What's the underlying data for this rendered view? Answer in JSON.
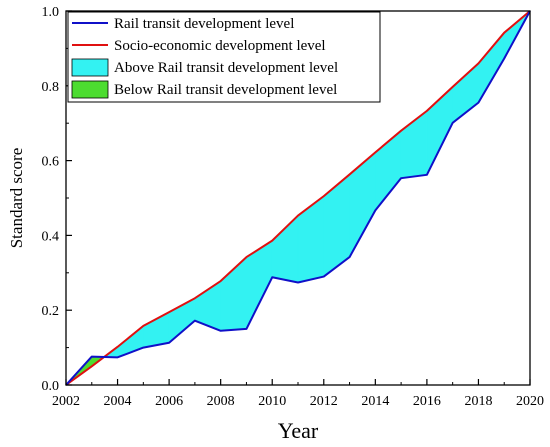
{
  "chart_data": {
    "type": "area",
    "title": "",
    "xlabel": "Year",
    "ylabel": "Standard score",
    "xlim": [
      2002,
      2020
    ],
    "ylim": [
      0,
      1.0
    ],
    "x_ticks": [
      "2002",
      "2004",
      "2006",
      "2008",
      "2010",
      "2012",
      "2014",
      "2016",
      "2018",
      "2020"
    ],
    "y_ticks": [
      "0.0",
      "0.2",
      "0.4",
      "0.6",
      "0.8",
      "1.0"
    ],
    "grid": false,
    "legend_position": "top-left",
    "x": [
      2002,
      2003,
      2004,
      2005,
      2006,
      2007,
      2008,
      2009,
      2010,
      2011,
      2012,
      2013,
      2014,
      2015,
      2016,
      2017,
      2018,
      2019,
      2020
    ],
    "series": [
      {
        "name": "Rail transit development level",
        "color": "#1010c8",
        "values": [
          0.0,
          0.076,
          0.074,
          0.1,
          0.113,
          0.172,
          0.145,
          0.15,
          0.288,
          0.274,
          0.29,
          0.342,
          0.467,
          0.553,
          0.562,
          0.701,
          0.755,
          0.873,
          1.0
        ]
      },
      {
        "name": "Socio-economic development level",
        "color": "#e01010",
        "values": [
          0.0,
          0.05,
          0.102,
          0.158,
          0.195,
          0.232,
          0.278,
          0.342,
          0.386,
          0.453,
          0.505,
          0.563,
          0.622,
          0.68,
          0.733,
          0.797,
          0.86,
          0.942,
          1.0
        ]
      }
    ],
    "fill_legend": [
      {
        "name": "Above Rail transit development level",
        "color": "#33f2f2"
      },
      {
        "name": "Below Rail transit development level",
        "color": "#4cdc30"
      }
    ]
  }
}
